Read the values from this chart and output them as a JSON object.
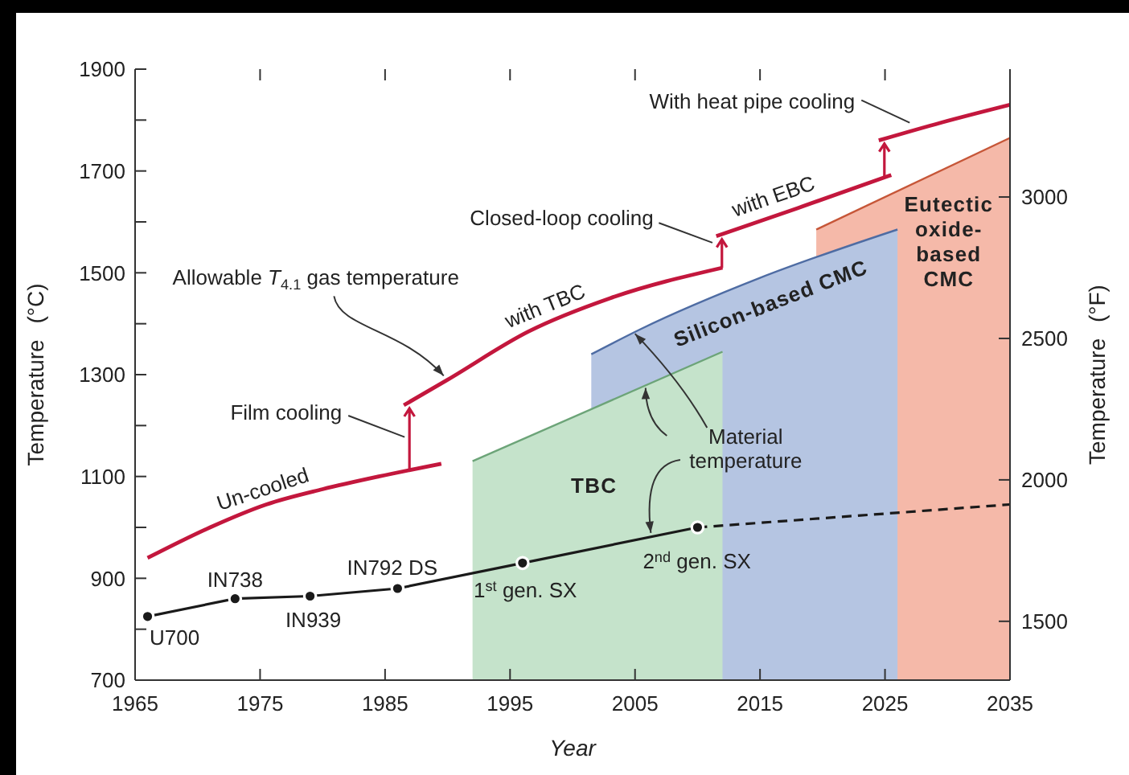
{
  "chart_data": {
    "type": "line",
    "xlabel": "Year",
    "ylabel": "Temperature (°C)",
    "y2label": "Temperature (°F)",
    "xlim": [
      1965,
      2035
    ],
    "xticks": [
      1965,
      1975,
      1985,
      1995,
      2005,
      2015,
      2025,
      2035
    ],
    "ylim": [
      700,
      1900
    ],
    "yticks": [
      700,
      {
        "value": 800,
        "label": null
      },
      900,
      {
        "value": 1000,
        "label": null
      },
      1100,
      {
        "value": 1200,
        "label": null
      },
      1300,
      {
        "value": 1400,
        "label": null
      },
      1500,
      {
        "value": 1600,
        "label": null
      },
      1700,
      {
        "value": 1800,
        "label": null
      },
      1900
    ],
    "y2lim": [
      1292,
      3452
    ],
    "y2ticks": [
      1500,
      2000,
      2500,
      3000
    ],
    "series": [
      {
        "type": "area",
        "color": "#f5b9a9",
        "x": [
          2019.5,
          2035
        ],
        "values": [
          1585,
          1765
        ]
      },
      {
        "type": "area",
        "color": "#b5c5e2",
        "x": [
          2001.5,
          2005.5,
          2015,
          2026
        ],
        "values": [
          1340,
          1390,
          1490,
          1585
        ]
      },
      {
        "type": "area",
        "name": "TBC",
        "color": "#c5e3cb",
        "x": [
          1992,
          2012
        ],
        "values": [
          1130,
          1345
        ]
      },
      {
        "name": "Un-cooled",
        "color": "#c3173d",
        "x": [
          1966,
          1971,
          1975.5,
          1980,
          1984.5,
          1989.5
        ],
        "values": [
          940,
          1000,
          1045,
          1075,
          1100,
          1125
        ]
      },
      {
        "name": "with TBC",
        "color": "#c3173d",
        "x": [
          1986.5,
          1990,
          1996.5,
          2003,
          2012
        ],
        "values": [
          1240,
          1290,
          1385,
          1450,
          1510
        ]
      },
      {
        "name": "with EBC",
        "color": "#c3173d",
        "x": [
          2011.5,
          2018,
          2025.5
        ],
        "values": [
          1572,
          1627,
          1692
        ]
      },
      {
        "name": "With heat pipe cooling",
        "color": "#c3173d",
        "x": [
          2024.5,
          2029.5,
          2035
        ],
        "values": [
          1760,
          1795,
          1830
        ]
      },
      {
        "color": "#1a1a1a",
        "marker": "circle",
        "x": [
          1966,
          1973,
          1979,
          1986,
          1996,
          2010
        ],
        "values": [
          825,
          860,
          865,
          880,
          930,
          1000
        ]
      },
      {
        "color": "#1a1a1a",
        "line_style": "dashed",
        "x": [
          2010,
          2035
        ],
        "values": [
          1000,
          1045
        ]
      }
    ],
    "annotations": [
      {
        "text": "Allowable T$_{4.1}$ gas temperature",
        "x": 1990,
        "y": 1290
      },
      "Film cooling",
      "Closed-loop cooling",
      {
        "text": "Material temperature",
        "x": 2005,
        "y": 1385
      },
      {
        "text": "U700",
        "x": 1966,
        "y": 825
      },
      {
        "text": "IN738",
        "x": 1973,
        "y": 860
      },
      {
        "text": "IN939",
        "x": 1979,
        "y": 865
      },
      {
        "text": "IN792 DS",
        "x": 1986,
        "y": 880
      },
      {
        "text": "1$^{st}$ gen. SX",
        "x": 1996,
        "y": 930
      },
      {
        "text": "2$^{nd}$ gen. SX",
        "x": 2010,
        "y": 1000
      },
      "Silicon-based CMC",
      "Eutectic oxide-based CMC"
    ]
  }
}
